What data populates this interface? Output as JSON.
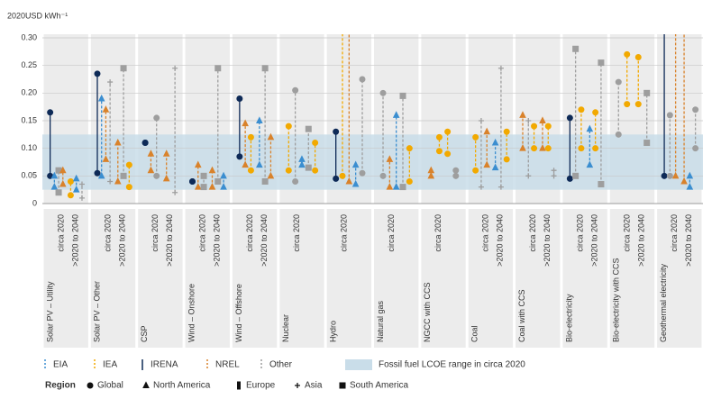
{
  "chart_data": {
    "type": "range",
    "y_axis_label": "2020USD kWh⁻¹",
    "ylim": [
      0,
      0.3
    ],
    "yticks": [
      0,
      0.05,
      {
        "value": 0.1,
        "label": "0.10"
      },
      0.15,
      {
        "value": 0.2,
        "label": "0.20"
      },
      0.25,
      {
        "value": 0.3,
        "label": "0.30"
      }
    ],
    "grid": true,
    "band": {
      "label": "Fossil fuel LCOE range in circa 2020",
      "range": [
        0.025,
        0.125
      ],
      "color": "#c9dde9"
    },
    "sources": [
      {
        "name": "EIA",
        "color": "#3b8ed0",
        "dashed": true
      },
      {
        "name": "IEA",
        "color": "#f2a900",
        "dashed": true
      },
      {
        "name": "IRENA",
        "color": "#0e2a57",
        "dashed": false
      },
      {
        "name": "NREL",
        "color": "#d9822b",
        "dashed": true
      },
      {
        "name": "Other",
        "color": "#9e9e9e",
        "dashed": true
      }
    ],
    "region_title": "Region",
    "regions": [
      {
        "name": "Global",
        "marker": "circle"
      },
      {
        "name": "North America",
        "marker": "triangle"
      },
      {
        "name": "Europe",
        "marker": "diamond"
      },
      {
        "name": "Asia",
        "marker": "plus"
      },
      {
        "name": "South America",
        "marker": "square"
      }
    ],
    "groups": [
      {
        "name": "Solar PV – Utility",
        "periods": [
          "circa 2020",
          ">2020 to 2040"
        ],
        "ranges": [
          {
            "source": "IRENA",
            "region": "Global",
            "period": 0,
            "low": 0.05,
            "high": 0.165
          },
          {
            "source": "EIA",
            "region": "North America",
            "period": 0,
            "low": 0.03,
            "high": 0.05
          },
          {
            "source": "Other",
            "region": "South America",
            "period": 0,
            "low": 0.02,
            "high": 0.06
          },
          {
            "source": "NREL",
            "region": "North America",
            "period": 0,
            "low": 0.035,
            "high": 0.06
          },
          {
            "source": "IEA",
            "region": "Global",
            "period": 1,
            "low": 0.015,
            "high": 0.04
          },
          {
            "source": "EIA",
            "region": "North America",
            "period": 1,
            "low": 0.025,
            "high": 0.045
          },
          {
            "source": "Other",
            "region": "Asia",
            "period": 1,
            "low": 0.01,
            "high": 0.035
          }
        ]
      },
      {
        "name": "Solar PV – Other",
        "periods": [
          "circa 2020",
          ">2020 to 2040"
        ],
        "ranges": [
          {
            "source": "IRENA",
            "region": "Global",
            "period": 0,
            "low": 0.055,
            "high": 0.235
          },
          {
            "source": "EIA",
            "region": "North America",
            "period": 0,
            "low": 0.05,
            "high": 0.19
          },
          {
            "source": "NREL",
            "region": "North America",
            "period": 0,
            "low": 0.08,
            "high": 0.17
          },
          {
            "source": "Other",
            "region": "Asia",
            "period": 0,
            "low": 0.04,
            "high": 0.22
          },
          {
            "source": "NREL",
            "region": "North America",
            "period": 1,
            "low": 0.04,
            "high": 0.11
          },
          {
            "source": "Other",
            "region": "South America",
            "period": 1,
            "low": 0.05,
            "high": 0.245
          },
          {
            "source": "IEA",
            "region": "Global",
            "period": 1,
            "low": 0.03,
            "high": 0.07
          }
        ]
      },
      {
        "name": "CSP",
        "periods": [
          "circa 2020",
          ">2020 to 2040"
        ],
        "ranges": [
          {
            "source": "IRENA",
            "region": "Global",
            "period": 0,
            "low": 0.11,
            "high": 0.11
          },
          {
            "source": "NREL",
            "region": "North America",
            "period": 0,
            "low": 0.06,
            "high": 0.09
          },
          {
            "source": "Other",
            "region": "Global",
            "period": 0,
            "low": 0.05,
            "high": 0.155
          },
          {
            "source": "NREL",
            "region": "North America",
            "period": 1,
            "low": 0.045,
            "high": 0.09
          },
          {
            "source": "Other",
            "region": "Asia",
            "period": 1,
            "low": 0.02,
            "high": 0.245
          }
        ]
      },
      {
        "name": "Wind – Onshore",
        "periods": [
          "circa 2020",
          ">2020 to 2040"
        ],
        "ranges": [
          {
            "source": "IRENA",
            "region": "Global",
            "period": 0,
            "low": 0.04,
            "high": 0.04
          },
          {
            "source": "NREL",
            "region": "North America",
            "period": 0,
            "low": 0.03,
            "high": 0.07
          },
          {
            "source": "Other",
            "region": "South America",
            "period": 0,
            "low": 0.03,
            "high": 0.05
          },
          {
            "source": "NREL",
            "region": "North America",
            "period": 1,
            "low": 0.03,
            "high": 0.06
          },
          {
            "source": "Other",
            "region": "South America",
            "period": 1,
            "low": 0.04,
            "high": 0.245
          },
          {
            "source": "EIA",
            "region": "North America",
            "period": 1,
            "low": 0.03,
            "high": 0.05
          }
        ]
      },
      {
        "name": "Wind – Offshore",
        "periods": [
          "circa 2020",
          ">2020 to 2040"
        ],
        "ranges": [
          {
            "source": "IRENA",
            "region": "Global",
            "period": 0,
            "low": 0.085,
            "high": 0.19
          },
          {
            "source": "NREL",
            "region": "North America",
            "period": 0,
            "low": 0.07,
            "high": 0.145
          },
          {
            "source": "IEA",
            "region": "Global",
            "period": 0,
            "low": 0.06,
            "high": 0.12
          },
          {
            "source": "EIA",
            "region": "North America",
            "period": 1,
            "low": 0.07,
            "high": 0.15
          },
          {
            "source": "Other",
            "region": "South America",
            "period": 1,
            "low": 0.04,
            "high": 0.245
          },
          {
            "source": "NREL",
            "region": "North America",
            "period": 1,
            "low": 0.05,
            "high": 0.12
          }
        ]
      },
      {
        "name": "Nuclear",
        "periods": [
          "circa 2020"
        ],
        "ranges": [
          {
            "source": "IEA",
            "region": "Global",
            "period": 0,
            "low": 0.06,
            "high": 0.14
          },
          {
            "source": "Other",
            "region": "Global",
            "period": 0,
            "low": 0.04,
            "high": 0.205
          },
          {
            "source": "EIA",
            "region": "North America",
            "period": 0,
            "low": 0.07,
            "high": 0.08
          },
          {
            "source": "Other",
            "region": "South America",
            "period": 0,
            "low": 0.065,
            "high": 0.135
          },
          {
            "source": "IEA",
            "region": "Global",
            "period": 0,
            "low": 0.06,
            "high": 0.11
          }
        ]
      },
      {
        "name": "Hydro",
        "periods": [
          "circa 2020"
        ],
        "ranges": [
          {
            "source": "IRENA",
            "region": "Global",
            "period": 0,
            "low": 0.045,
            "high": 0.13
          },
          {
            "source": "IEA",
            "region": "Global",
            "period": 0,
            "low": 0.05,
            "high": 0.35
          },
          {
            "source": "NREL",
            "region": "North America",
            "period": 0,
            "low": 0.04,
            "high": 0.35
          },
          {
            "source": "EIA",
            "region": "North America",
            "period": 0,
            "low": 0.035,
            "high": 0.07
          },
          {
            "source": "Other",
            "region": "Global",
            "period": 0,
            "low": 0.055,
            "high": 0.225
          }
        ]
      },
      {
        "name": "Natural gas",
        "periods": [
          "circa 2020"
        ],
        "ranges": [
          {
            "source": "Other",
            "region": "Global",
            "period": 0,
            "low": 0.05,
            "high": 0.2
          },
          {
            "source": "NREL",
            "region": "North America",
            "period": 0,
            "low": 0.03,
            "high": 0.08
          },
          {
            "source": "EIA",
            "region": "North America",
            "period": 0,
            "low": 0.03,
            "high": 0.16
          },
          {
            "source": "Other",
            "region": "South America",
            "period": 0,
            "low": 0.03,
            "high": 0.195
          },
          {
            "source": "IEA",
            "region": "Global",
            "period": 0,
            "low": 0.04,
            "high": 0.1
          }
        ]
      },
      {
        "name": "NGCC with CCS",
        "periods": [
          "circa 2020"
        ],
        "ranges": [
          {
            "source": "NREL",
            "region": "North America",
            "period": 0,
            "low": 0.05,
            "high": 0.06
          },
          {
            "source": "IEA",
            "region": "Global",
            "period": 0,
            "low": 0.095,
            "high": 0.12
          },
          {
            "source": "IEA",
            "region": "Global",
            "period": 0,
            "low": 0.09,
            "high": 0.13
          },
          {
            "source": "Other",
            "region": "Global",
            "period": 0,
            "low": 0.05,
            "high": 0.06
          }
        ]
      },
      {
        "name": "Coal",
        "periods": [
          "circa 2020",
          ">2020 to 2040"
        ],
        "ranges": [
          {
            "source": "IEA",
            "region": "Global",
            "period": 0,
            "low": 0.06,
            "high": 0.12
          },
          {
            "source": "Other",
            "region": "Asia",
            "period": 0,
            "low": 0.03,
            "high": 0.15
          },
          {
            "source": "NREL",
            "region": "North America",
            "period": 0,
            "low": 0.07,
            "high": 0.13
          },
          {
            "source": "EIA",
            "region": "North America",
            "period": 1,
            "low": 0.065,
            "high": 0.11
          },
          {
            "source": "Other",
            "region": "Asia",
            "period": 1,
            "low": 0.03,
            "high": 0.245
          },
          {
            "source": "IEA",
            "region": "Global",
            "period": 1,
            "low": 0.08,
            "high": 0.13
          }
        ]
      },
      {
        "name": "Coal with CCS",
        "periods": [
          "circa 2020",
          ">2020 to 2040"
        ],
        "ranges": [
          {
            "source": "NREL",
            "region": "North America",
            "period": 0,
            "low": 0.1,
            "high": 0.16
          },
          {
            "source": "Other",
            "region": "Asia",
            "period": 0,
            "low": 0.05,
            "high": 0.15
          },
          {
            "source": "IEA",
            "region": "Global",
            "period": 0,
            "low": 0.1,
            "high": 0.14
          },
          {
            "source": "NREL",
            "region": "North America",
            "period": 1,
            "low": 0.1,
            "high": 0.15
          },
          {
            "source": "IEA",
            "region": "Global",
            "period": 1,
            "low": 0.1,
            "high": 0.14
          },
          {
            "source": "Other",
            "region": "Asia",
            "period": 1,
            "low": 0.05,
            "high": 0.06
          }
        ]
      },
      {
        "name": "Bio-electricity",
        "periods": [
          "circa 2020",
          ">2020 to 2040"
        ],
        "ranges": [
          {
            "source": "IRENA",
            "region": "Global",
            "period": 0,
            "low": 0.045,
            "high": 0.155
          },
          {
            "source": "Other",
            "region": "South America",
            "period": 0,
            "low": 0.05,
            "high": 0.28
          },
          {
            "source": "IEA",
            "region": "Global",
            "period": 0,
            "low": 0.1,
            "high": 0.17
          },
          {
            "source": "EIA",
            "region": "North America",
            "period": 1,
            "low": 0.07,
            "high": 0.135
          },
          {
            "source": "IEA",
            "region": "Global",
            "period": 1,
            "low": 0.1,
            "high": 0.165
          },
          {
            "source": "Other",
            "region": "South America",
            "period": 1,
            "low": 0.035,
            "high": 0.255
          }
        ]
      },
      {
        "name": "Bio-electricity with CCS",
        "periods": [
          "circa 2020",
          ">2020 to 2040"
        ],
        "ranges": [
          {
            "source": "Other",
            "region": "Global",
            "period": 0,
            "low": 0.125,
            "high": 0.22
          },
          {
            "source": "IEA",
            "region": "Global",
            "period": 0,
            "low": 0.18,
            "high": 0.27
          },
          {
            "source": "IEA",
            "region": "Global",
            "period": 1,
            "low": 0.18,
            "high": 0.265
          },
          {
            "source": "Other",
            "region": "South America",
            "period": 1,
            "low": 0.11,
            "high": 0.2
          }
        ]
      },
      {
        "name": "Geothermal electricity",
        "periods": [
          "circa 2020",
          ">2020 to 2040"
        ],
        "ranges": [
          {
            "source": "IRENA",
            "region": "Global",
            "period": 0,
            "low": 0.05,
            "high": 0.35
          },
          {
            "source": "Other",
            "region": "Global",
            "period": 0,
            "low": 0.05,
            "high": 0.16
          },
          {
            "source": "NREL",
            "region": "North America",
            "period": 0,
            "low": 0.05,
            "high": 0.35
          },
          {
            "source": "NREL",
            "region": "North America",
            "period": 1,
            "low": 0.04,
            "high": 0.35
          },
          {
            "source": "EIA",
            "region": "North America",
            "period": 1,
            "low": 0.03,
            "high": 0.05
          },
          {
            "source": "Other",
            "region": "Global",
            "period": 1,
            "low": 0.1,
            "high": 0.17
          }
        ]
      }
    ]
  }
}
